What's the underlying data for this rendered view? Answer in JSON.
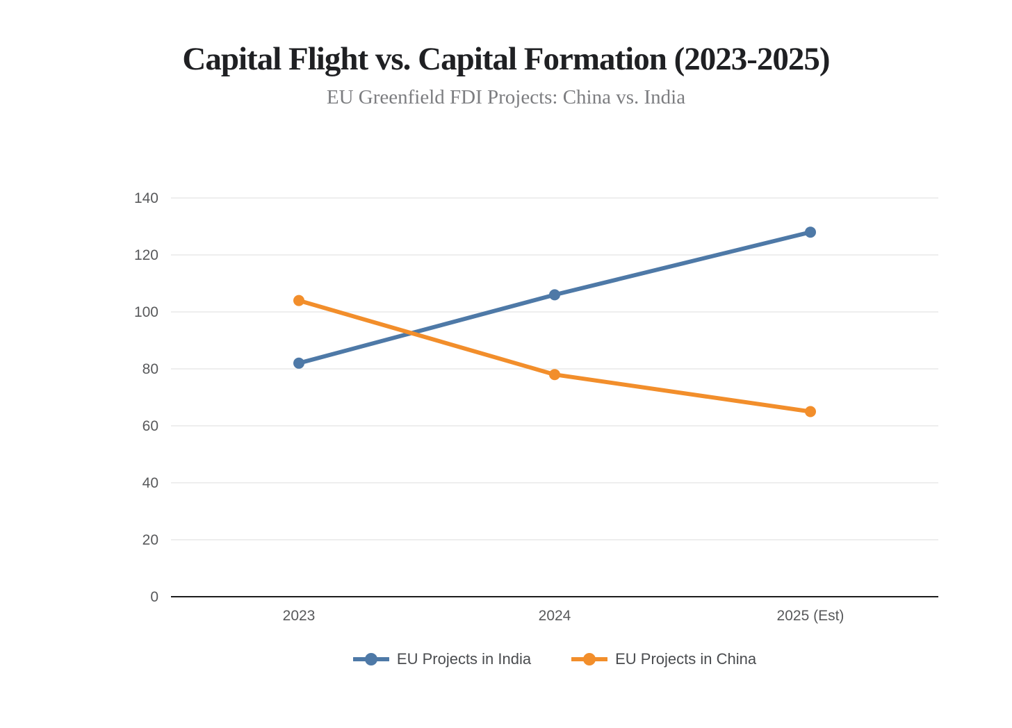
{
  "header": {
    "title": "Capital Flight vs. Capital Formation (2023-2025)",
    "subtitle": "EU Greenfield FDI Projects: China vs. India"
  },
  "chart_data": {
    "type": "line",
    "title": "Capital Flight vs. Capital Formation (2023-2025)",
    "subtitle": "EU Greenfield FDI Projects: China vs. India",
    "categories": [
      "2023",
      "2024",
      "2025 (Est)"
    ],
    "series": [
      {
        "name": "EU Projects in India",
        "color": "#4E79A7",
        "values": [
          82,
          106,
          128
        ]
      },
      {
        "name": "EU Projects in China",
        "color": "#F28E2B",
        "values": [
          104,
          78,
          65
        ]
      }
    ],
    "xlabel": "",
    "ylabel": "",
    "ylim": [
      0,
      140
    ],
    "yticks": [
      0,
      20,
      40,
      60,
      80,
      100,
      120,
      140
    ],
    "grid": true,
    "legend_position": "bottom"
  },
  "colors": {
    "background": "#ffffff",
    "gridline": "#e9e9e9",
    "axis_line": "#1c1c1c",
    "tick_text": "#58595b",
    "title_text": "#1f2023",
    "subtitle_text": "#7c7d80",
    "legend_text": "#4a4c4f"
  }
}
